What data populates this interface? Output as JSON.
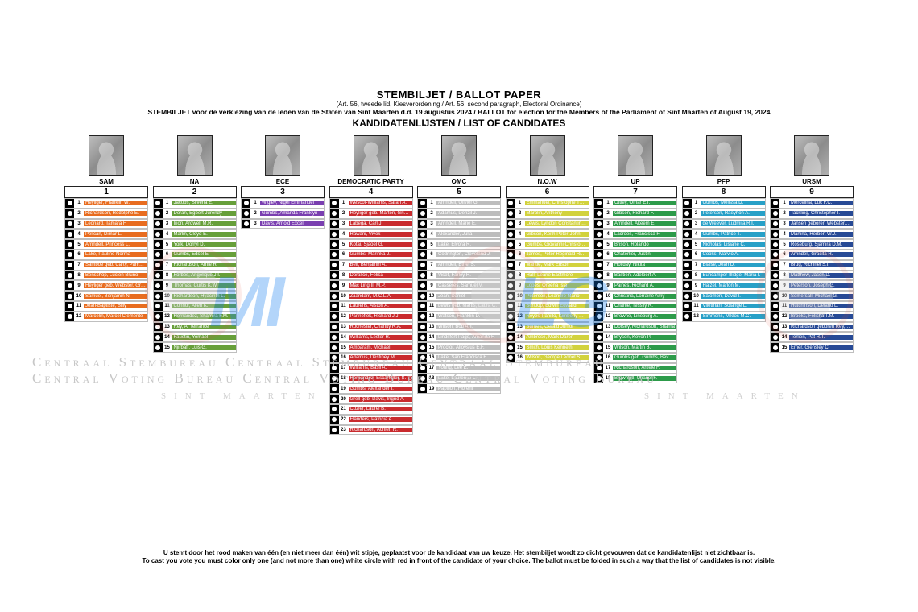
{
  "header": {
    "main": "STEMBILJET / BALLOT PAPER",
    "sub1": "(Art. 56, tweede lid, Kiesverordening / Art. 56, second paragraph, Electoral Ordinance)",
    "sub2": "STEMBILJET voor de verkiezing van de leden van de Staten van Sint Maarten d.d. 19 augustus 2024 / BALLOT for election for the Members of the Parliament of Sint Maarten of August 19, 2024",
    "cand": "KANDIDATENLIJSTEN / LIST OF CANDIDATES"
  },
  "watermark": {
    "line1": "Centraal Stembureau Centraal Stembureau Centraal Stembureau",
    "line2": "Central Voting Bureau Central Voting Bureau Central Voting Bureau",
    "sub_left": "SINT  MAARTEN",
    "sub_right": "SINT  MAARTEN"
  },
  "footer": {
    "line1": "U stemt door het rood maken van één (en niet meer dan één) wit stipje, geplaatst voor de kandidaat van uw keuze. Het stembiljet wordt zo dicht gevouwen dat de kandidatenlijst niet zichtbaar is.",
    "line2": "To cast you vote you must color only one (and not more than one) white circle with red in front of the candidate of your choice. The ballot must be folded in such a way that the list of candidates is not visible."
  },
  "parties": [
    {
      "id": "p1",
      "name": "SAM",
      "number": "1",
      "color": "#e86c1f",
      "candidates": [
        "Heyliger, Franklin W.",
        "Richardson, Rodolphe E.",
        "Leonard, Tamara F.",
        "Pelican, Dimar L.",
        "Arrindell, Princess L.",
        "Lake, Pauline Norma",
        "Samboe geb. Carty, Pamela G.",
        "Benschop, Lucien Bruno",
        "Heyliger geb. Webster, Grisha M.",
        "Samuel, Benjamin N.",
        "Jean‑Baptiste, Billy",
        "Marcelin, Marcel Clemente"
      ]
    },
    {
      "id": "p2",
      "name": "NA",
      "number": "2",
      "color": "#679f3a",
      "candidates": [
        "Jacobs, Silveria E.",
        "Doran, Egbert Jurendy",
        "Irion, Ardwell M.R.",
        "Marlin, Cloyd E.",
        "York, Dorryl D.",
        "Gumbs, Edsel E.",
        "Richardson, Arnie R.",
        "Forbes, Angelique J.I.",
        "Thomas, Curtis K.W.",
        "Richardson, Hyacinth L.",
        "Connor, Allen K.",
        "Hernandez, Shamira F.M.",
        "Rey, A. Terrance",
        "Faustin, Yomael",
        "Njirbaff, Luis G."
      ]
    },
    {
      "id": "p3",
      "name": "ECE",
      "number": "3",
      "color": "#7a3fb0",
      "candidates": [
        "Wigley, Nigel Emmanuel",
        "Gumbs, Amanda Franklyn",
        "Davis, Arnold Excell"
      ]
    },
    {
      "id": "p4",
      "name": "DEMOCRATIC PARTY",
      "number": "4",
      "color": "#c92b2e",
      "candidates": [
        "Wescot‑Williams, Sarah A.",
        "Heyliger geb. Marten, Grisha M.",
        "Labega, Carl J.",
        "Rawani, Vivek",
        "Kotai, Sjaoel G.",
        "Gumbs, Marinka J.",
        "Bell, Benjamin A.",
        "Doralice, Felisa",
        "Mac Ling II, M.P.",
        "Zaandam, M.C.L.A.",
        "Laurens, Alston A.",
        "Pannefiek, Richard J.J.",
        "Rochester, Chanity R.A.",
        "Williams, Lester R.",
        "Ambaram, Michael",
        "Adamus, Destiney M.",
        "Williams, Basil A.",
        "Hernandez, Escarfuller, Servanie D.",
        "Gumbs, Alexander I.",
        "Grell geb. Davis, Ingrid A.",
        "Cozier, Laurel B.",
        "Flanders, Patricia A.",
        "Richardson, Achlen R."
      ]
    },
    {
      "id": "p5",
      "name": "OMC",
      "number": "5",
      "color": "#bdbdbd",
      "candidates": [
        "Arrindell, Olivier G.",
        "Adamus, Denzil J.",
        "Arrindell, Marie E.",
        "Alexander, Julia",
        "Lake, Elvora R.",
        "Codrington, Cleveland J.",
        "Arrindell, Ethel S.",
        "Viset, Farley R.",
        "Casseres, Samuel V.",
        "Jean, Daniel",
        "Lewis geb. Martis, Laura C.",
        "Watson, Franklin D.",
        "Wilson, Bob A.T.",
        "Lindsfort‑Page, Amanda F.",
        "Proctor, Alloysius E.F.",
        "Lake, San Francisca E.",
        "Young, Lee E.",
        "Lake, Laurence L.",
        "Papillon, Florent"
      ]
    },
    {
      "id": "p6",
      "name": "N.O.W",
      "number": "6",
      "color": "#d2d23d",
      "candidates": [
        "Emmanuel, Christophe Theodore",
        "Marolin, Anthony",
        "Lewis, Lyndon Constantine Junior",
        "Gibson, Keith Peter‑John",
        "Gumbs, Giovanni Christopher",
        "James, Peter Reginald Richard",
        "Mantle, Mark Edson",
        "Hall, Learie Eastmore",
        "Lopes, Oreena Isla",
        "Peterson, Leandro Mario",
        "Schoop, Edwin Edward",
        "Reyes‑Panillo, Kimberly Katharina Evangelyn",
        "Burnett, Gerald Junior",
        "Ambrose, Mark Daren",
        "Smith, Louis Kenneth",
        "Wilson, George Leonel Sonnia Valeria"
      ]
    },
    {
      "id": "p7",
      "name": "UP",
      "number": "7",
      "color": "#2d9b4a",
      "candidates": [
        "Ottley, Omar E.I.",
        "Gibson, Richard F.",
        "Arrindell, Akeem E.",
        "Lacroes, Francisca F.",
        "Brison, Rolando",
        "Chaterlier, Justin",
        "Holiday, Nikita",
        "Bastien, Adelbert A.",
        "Paines, Richard A.",
        "Christina, Lorraine Amy",
        "Charlie, Tessily R.",
        "Browne, Lineburg A.",
        "Dorsey, Richardson, Sharna",
        "Bryson, Kevon P.",
        "Wilson, Martin B.",
        "Gumbs geb. Gumbs, Beverly L.",
        "Richardson, Arkele F.",
        "Brownbill, Chanel F."
      ]
    },
    {
      "id": "p8",
      "name": "PFP",
      "number": "8",
      "color": "#28a0c7",
      "candidates": [
        "Gumbs, Melissa D.",
        "Petersen, Raeyhon A.",
        "de Weever, Ludmila R.I.",
        "Gumbs, Patrice T.",
        "Nicholas, Lisiane C.",
        "Cooks, Marvio A.",
        "Blaise, Jean D.",
        "Buncamper‑Illidge, Maria I.",
        "Haizel, Marlon M.",
        "Salomon, David I.",
        "Vlietman, Solange L.",
        "Simmons, Miklos M.C."
      ]
    },
    {
      "id": "p9",
      "name": "URSM",
      "number": "9",
      "color": "#274a96",
      "candidates": [
        "Mercelina, Luc F.C.",
        "Tackling, Christopher I.",
        "Jansen geboren Webster, Veronica C.",
        "Martina, Herbert W.J.",
        "Roseburg, Sjamira D.M.",
        "Arrindell, Gracita R.",
        "Brug, Richinel S.I.",
        "Matthew, Jason D.",
        "Peterson, Joseph G.",
        "Somersall, Michael G.",
        "Hutchinson, Delano L.",
        "Brooks, Felisha T.M.",
        "Richardson geboren Rey, Sue L.",
        "Terlien, Pat R.T.",
        "Emer, Giensley C."
      ]
    }
  ]
}
